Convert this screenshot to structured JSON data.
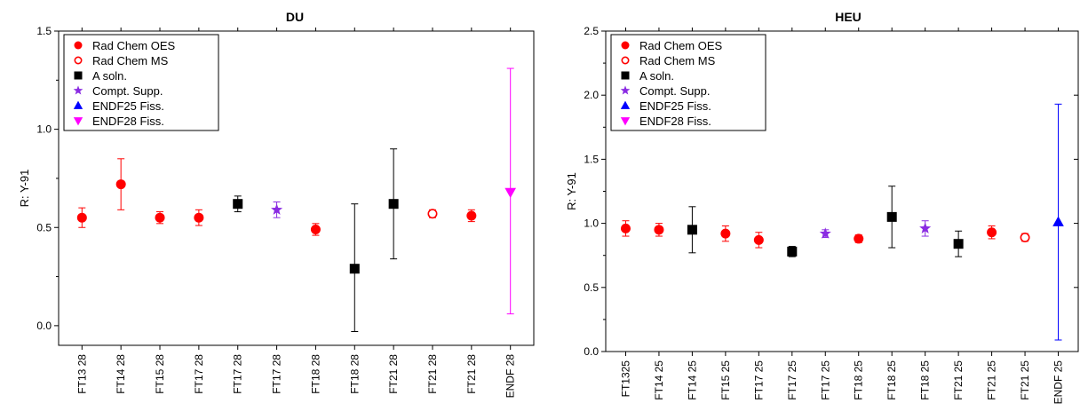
{
  "legend_entries": [
    {
      "label": "Rad Chem OES",
      "marker": "filled-circle",
      "color": "#ff0000"
    },
    {
      "label": "Rad Chem MS",
      "marker": "open-circle",
      "color": "#ff0000"
    },
    {
      "label": "A soln.",
      "marker": "square",
      "color": "#000000"
    },
    {
      "label": "Compt. Supp.",
      "marker": "star",
      "color": "#8a2be2"
    },
    {
      "label": "ENDF25 Fiss.",
      "marker": "up-triangle",
      "color": "#0000ff"
    },
    {
      "label": "ENDF28 Fiss.",
      "marker": "down-triangle",
      "color": "#ff00ff"
    }
  ],
  "chart_data": [
    {
      "type": "scatter",
      "title": "DU",
      "ylabel": "R: Y-91",
      "ylim": [
        -0.1,
        1.5
      ],
      "yticks": [
        0.0,
        0.5,
        1.0,
        1.5
      ],
      "ytick_labels": [
        "0.0",
        "0.5",
        "1.0",
        "1.5"
      ],
      "legend_position": "top-left",
      "categories": [
        "FT13 28",
        "FT14 28",
        "FT15 28",
        "FT17 28",
        "FT17 28",
        "FT17 28",
        "FT18 28",
        "FT18 28",
        "FT21 28",
        "FT21 28",
        "FT21 28",
        "ENDF 28"
      ],
      "points": [
        {
          "x": 0,
          "y": 0.55,
          "err_low": 0.05,
          "err_high": 0.05,
          "series": "Rad Chem OES"
        },
        {
          "x": 1,
          "y": 0.72,
          "err_low": 0.13,
          "err_high": 0.13,
          "series": "Rad Chem OES"
        },
        {
          "x": 2,
          "y": 0.55,
          "err_low": 0.03,
          "err_high": 0.03,
          "series": "Rad Chem OES"
        },
        {
          "x": 3,
          "y": 0.55,
          "err_low": 0.04,
          "err_high": 0.04,
          "series": "Rad Chem OES"
        },
        {
          "x": 4,
          "y": 0.62,
          "err_low": 0.04,
          "err_high": 0.04,
          "series": "A soln."
        },
        {
          "x": 5,
          "y": 0.59,
          "err_low": 0.04,
          "err_high": 0.04,
          "series": "Compt. Supp."
        },
        {
          "x": 6,
          "y": 0.49,
          "err_low": 0.03,
          "err_high": 0.03,
          "series": "Rad Chem OES"
        },
        {
          "x": 7,
          "y": 0.29,
          "err_low": 0.32,
          "err_high": 0.33,
          "series": "A soln."
        },
        {
          "x": 8,
          "y": 0.62,
          "err_low": 0.28,
          "err_high": 0.28,
          "series": "A soln."
        },
        {
          "x": 9,
          "y": 0.57,
          "err_low": 0.02,
          "err_high": 0.02,
          "series": "Rad Chem MS"
        },
        {
          "x": 10,
          "y": 0.56,
          "err_low": 0.03,
          "err_high": 0.03,
          "series": "Rad Chem OES"
        },
        {
          "x": 11,
          "y": 0.68,
          "err_low": 0.62,
          "err_high": 0.63,
          "series": "ENDF28 Fiss."
        }
      ]
    },
    {
      "type": "scatter",
      "title": "HEU",
      "ylabel": "R: Y-91",
      "ylim": [
        0.0,
        2.5
      ],
      "yticks": [
        0.0,
        0.5,
        1.0,
        1.5,
        2.0,
        2.5
      ],
      "ytick_labels": [
        "0.0",
        "0.5",
        "1.0",
        "1.5",
        "2.0",
        "2.5"
      ],
      "legend_position": "top-left",
      "categories": [
        "FT1325",
        "FT14 25",
        "FT14 25",
        "FT15 25",
        "FT17 25",
        "FT17 25",
        "FT17 25",
        "FT18 25",
        "FT18 25",
        "FT18 25",
        "FT21 25",
        "FT21 25",
        "FT21 25",
        "ENDF 25"
      ],
      "points": [
        {
          "x": 0,
          "y": 0.96,
          "err_low": 0.06,
          "err_high": 0.06,
          "series": "Rad Chem OES"
        },
        {
          "x": 1,
          "y": 0.95,
          "err_low": 0.05,
          "err_high": 0.05,
          "series": "Rad Chem OES"
        },
        {
          "x": 2,
          "y": 0.95,
          "err_low": 0.18,
          "err_high": 0.18,
          "series": "A soln."
        },
        {
          "x": 3,
          "y": 0.92,
          "err_low": 0.06,
          "err_high": 0.06,
          "series": "Rad Chem OES"
        },
        {
          "x": 4,
          "y": 0.87,
          "err_low": 0.06,
          "err_high": 0.06,
          "series": "Rad Chem OES"
        },
        {
          "x": 5,
          "y": 0.78,
          "err_low": 0.04,
          "err_high": 0.04,
          "series": "A soln."
        },
        {
          "x": 6,
          "y": 0.92,
          "err_low": 0.03,
          "err_high": 0.03,
          "series": "Compt. Supp."
        },
        {
          "x": 7,
          "y": 0.88,
          "err_low": 0.03,
          "err_high": 0.03,
          "series": "Rad Chem OES"
        },
        {
          "x": 8,
          "y": 1.05,
          "err_low": 0.24,
          "err_high": 0.24,
          "series": "A soln."
        },
        {
          "x": 9,
          "y": 0.96,
          "err_low": 0.06,
          "err_high": 0.06,
          "series": "Compt. Supp."
        },
        {
          "x": 10,
          "y": 0.84,
          "err_low": 0.1,
          "err_high": 0.1,
          "series": "A soln."
        },
        {
          "x": 11,
          "y": 0.93,
          "err_low": 0.05,
          "err_high": 0.05,
          "series": "Rad Chem OES"
        },
        {
          "x": 12,
          "y": 0.89,
          "err_low": 0.03,
          "err_high": 0.03,
          "series": "Rad Chem MS"
        },
        {
          "x": 13,
          "y": 1.01,
          "err_low": 0.92,
          "err_high": 0.92,
          "series": "ENDF25 Fiss."
        }
      ]
    }
  ]
}
